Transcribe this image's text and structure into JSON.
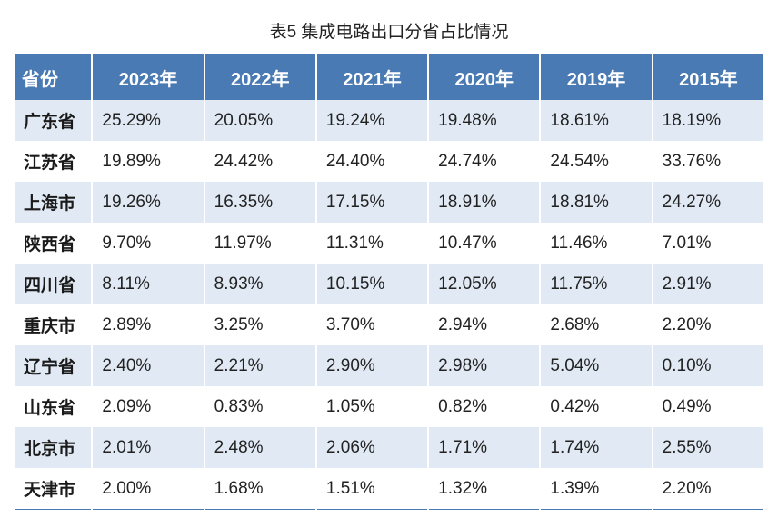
{
  "title": "表5 集成电路出口分省占比情况",
  "table": {
    "header_bg": "#4a7ab3",
    "header_fg": "#ffffff",
    "row_even_bg": "#e1eaf4",
    "row_odd_bg": "#ffffff",
    "border_color": "#4a7ab3",
    "font_size_header": 20,
    "font_size_cell": 19,
    "columns": [
      "省份",
      "2023年",
      "2022年",
      "2021年",
      "2020年",
      "2019年",
      "2015年"
    ],
    "rows": [
      {
        "province": "广东省",
        "values": [
          "25.29%",
          "20.05%",
          "19.24%",
          "19.48%",
          "18.61%",
          "18.19%"
        ]
      },
      {
        "province": "江苏省",
        "values": [
          "19.89%",
          "24.42%",
          "24.40%",
          "24.74%",
          "24.54%",
          "33.76%"
        ]
      },
      {
        "province": "上海市",
        "values": [
          "19.26%",
          "16.35%",
          "17.15%",
          "18.91%",
          "18.81%",
          "24.27%"
        ]
      },
      {
        "province": "陕西省",
        "values": [
          "9.70%",
          "11.97%",
          "11.31%",
          "10.47%",
          "11.46%",
          "7.01%"
        ]
      },
      {
        "province": "四川省",
        "values": [
          "8.11%",
          "8.93%",
          "10.15%",
          "12.05%",
          "11.75%",
          "2.91%"
        ]
      },
      {
        "province": "重庆市",
        "values": [
          "2.89%",
          "3.25%",
          "3.70%",
          "2.94%",
          "2.68%",
          "2.20%"
        ]
      },
      {
        "province": "辽宁省",
        "values": [
          "2.40%",
          "2.21%",
          "2.90%",
          "2.98%",
          "5.04%",
          "0.10%"
        ]
      },
      {
        "province": "山东省",
        "values": [
          "2.09%",
          "0.83%",
          "1.05%",
          "0.82%",
          "0.42%",
          "0.49%"
        ]
      },
      {
        "province": "北京市",
        "values": [
          "2.01%",
          "2.48%",
          "2.06%",
          "1.71%",
          "1.74%",
          "2.55%"
        ]
      },
      {
        "province": "天津市",
        "values": [
          "2.00%",
          "1.68%",
          "1.51%",
          "1.32%",
          "1.39%",
          "2.20%"
        ]
      }
    ]
  }
}
